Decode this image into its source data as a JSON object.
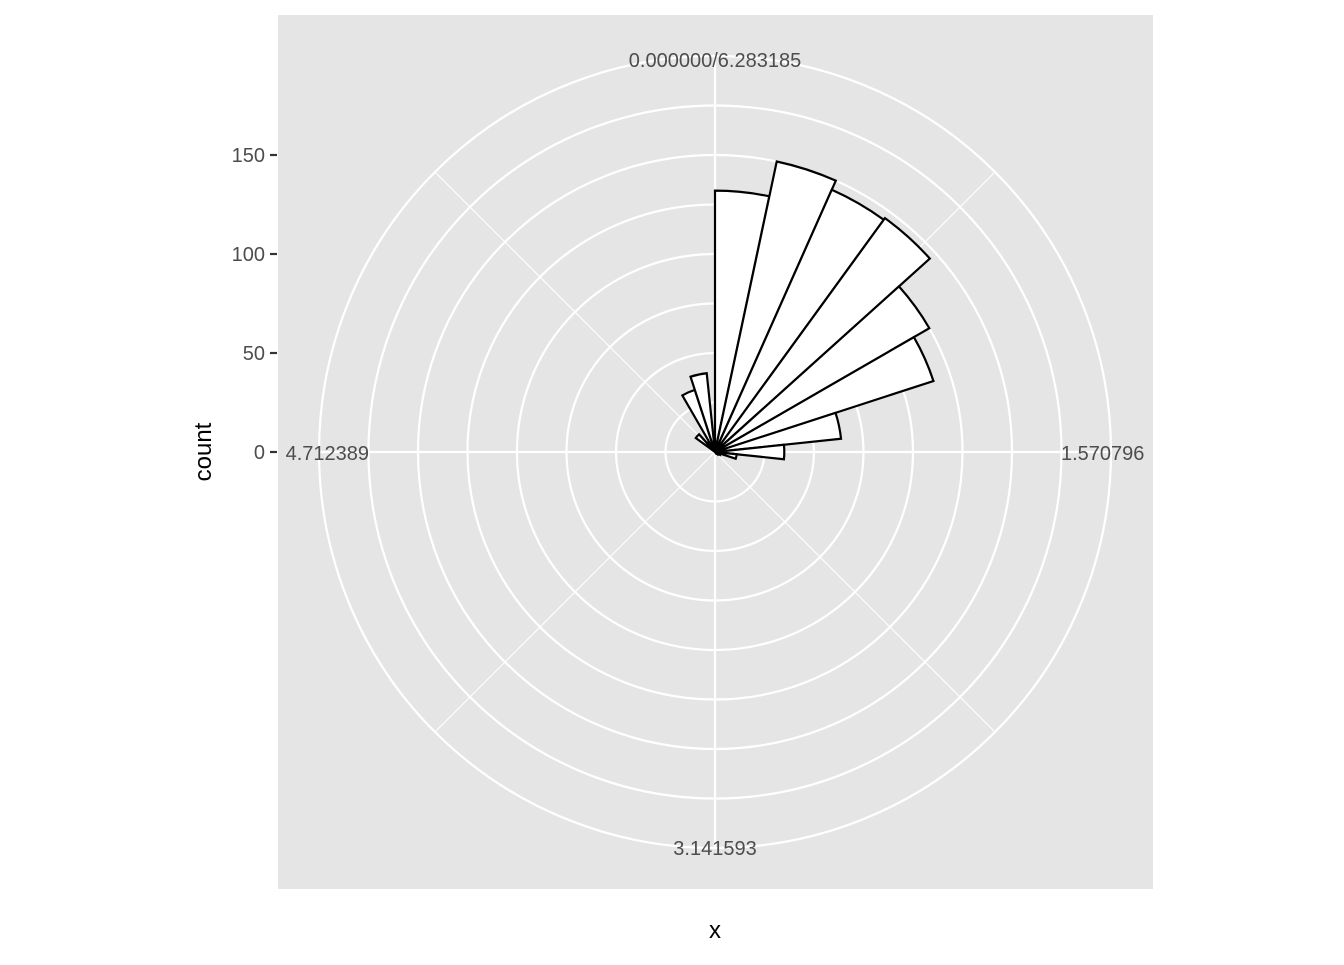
{
  "chart_data": {
    "type": "bar",
    "coord": "polar",
    "title": "",
    "xlabel": "x",
    "ylabel": "count",
    "x_domain": [
      0,
      6.283185
    ],
    "ylim": [
      0,
      200
    ],
    "grid": true,
    "legend": "none",
    "theta_ticks": [
      {
        "value": 0,
        "label": "0.000000/6.283185"
      },
      {
        "value": 1.570796,
        "label": "1.570796"
      },
      {
        "value": 3.141593,
        "label": "3.141593"
      },
      {
        "value": 4.712389,
        "label": "4.712389"
      }
    ],
    "theta_minor": [
      0.785398,
      2.356194,
      3.926991,
      5.497787
    ],
    "r_ticks": [
      {
        "value": 0,
        "label": "0"
      },
      {
        "value": 50,
        "label": "50"
      },
      {
        "value": 100,
        "label": "100"
      },
      {
        "value": 150,
        "label": "150"
      }
    ],
    "r_minor": [
      25,
      75,
      125,
      175,
      200
    ],
    "bin_width": 0.2094395,
    "bins": [
      {
        "x": 0.1047198,
        "count": 132
      },
      {
        "x": 0.3141593,
        "count": 150
      },
      {
        "x": 0.5235988,
        "count": 145
      },
      {
        "x": 0.7330383,
        "count": 146
      },
      {
        "x": 0.9424778,
        "count": 125
      },
      {
        "x": 1.1519173,
        "count": 116
      },
      {
        "x": 1.3613568,
        "count": 64
      },
      {
        "x": 1.5707963,
        "count": 35
      },
      {
        "x": 1.7802358,
        "count": 11
      },
      {
        "x": 1.9896753,
        "count": 3
      },
      {
        "x": 2.1991148,
        "count": 2
      },
      {
        "x": 2.4085543,
        "count": 1
      },
      {
        "x": 5.4454273,
        "count": 12
      },
      {
        "x": 5.6548668,
        "count": 6
      },
      {
        "x": 5.8643063,
        "count": 33
      },
      {
        "x": 6.0737458,
        "count": 40
      }
    ],
    "colors": {
      "panel": "#e5e5e5",
      "grid": "#ffffff",
      "bar_fill": "#ffffff",
      "bar_outline": "#000000",
      "tick_text": "#4d4d4d"
    }
  }
}
